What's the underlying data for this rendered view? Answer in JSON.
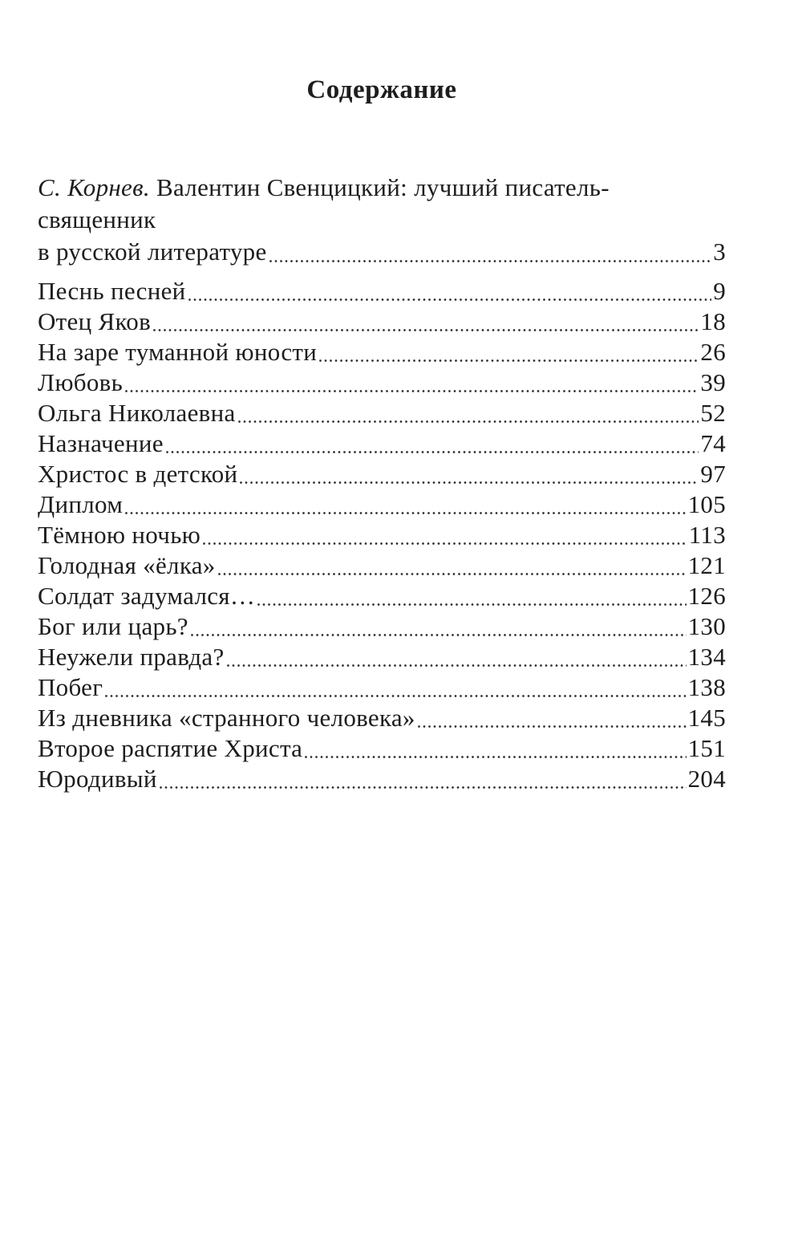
{
  "page": {
    "title": "Содержание"
  },
  "intro_entry": {
    "author": "С. Корнев.",
    "title_rest": " Валентин Свенцицкий: лучший писатель-священник",
    "title_line2": "в русской литературе",
    "page": "3"
  },
  "entries": [
    {
      "title": "Песнь песней",
      "page": "9"
    },
    {
      "title": "Отец Яков",
      "page": "18"
    },
    {
      "title": "На заре туманной юности",
      "page": "26"
    },
    {
      "title": "Любовь",
      "page": "39"
    },
    {
      "title": "Ольга Николаевна",
      "page": "52"
    },
    {
      "title": "Назначение",
      "page": "74"
    },
    {
      "title": "Христос в детской",
      "page": "97"
    },
    {
      "title": "Диплом",
      "page": "105"
    },
    {
      "title": "Тёмною ночью",
      "page": "113"
    },
    {
      "title": "Голодная «ёлка»",
      "page": "121"
    },
    {
      "title": "Солдат задумался…",
      "page": "126"
    },
    {
      "title": "Бог или царь?",
      "page": "130"
    },
    {
      "title": "Неужели правда?",
      "page": "134"
    },
    {
      "title": "Побег",
      "page": "138"
    },
    {
      "title": "Из дневника «странного человека»",
      "page": "145"
    },
    {
      "title": "Второе распятие Христа",
      "page": "151"
    },
    {
      "title": "Юродивый",
      "page": "204"
    }
  ],
  "colors": {
    "text": "#1d1d1d",
    "background": "#ffffff"
  }
}
